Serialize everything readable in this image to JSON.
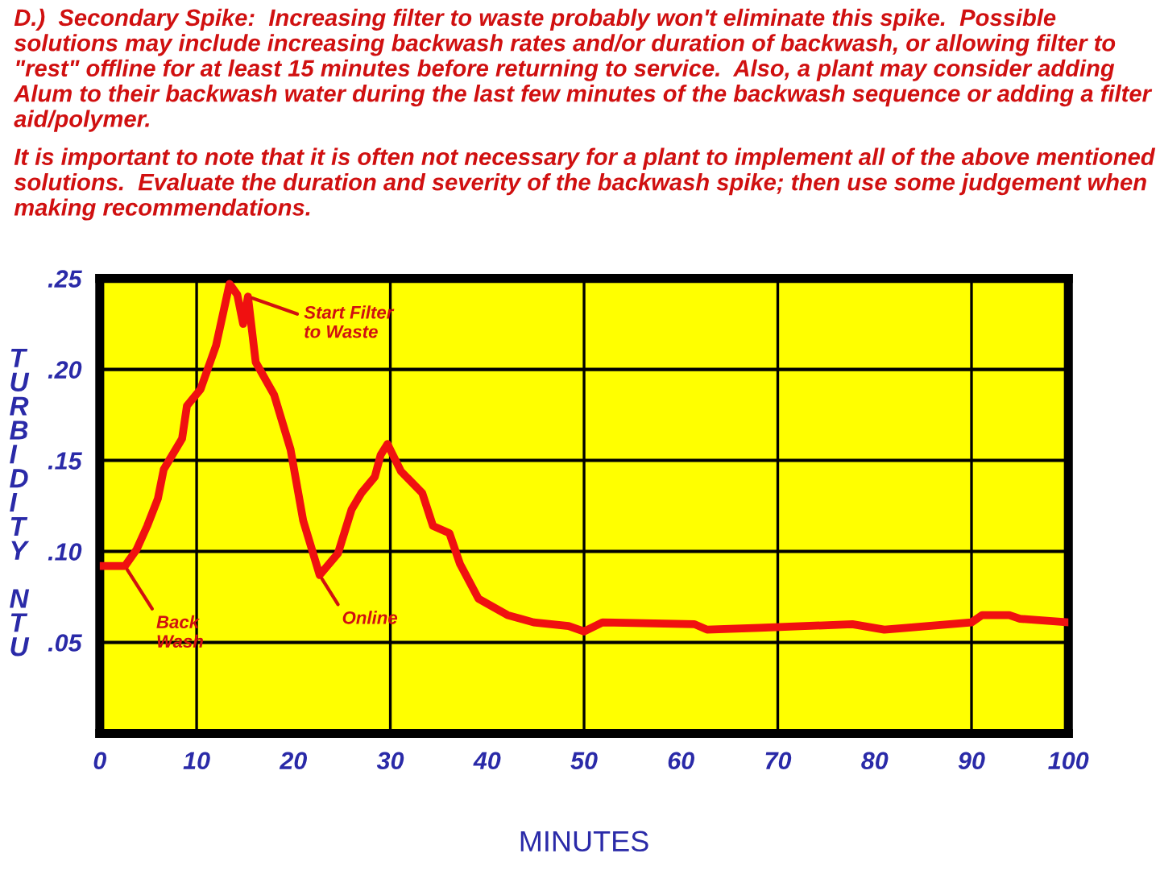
{
  "chart_data": {
    "type": "line",
    "title": "D.)  Secondary Spike:  Increasing filter to waste probably won't eliminate this spike.  Possible solutions may include increasing backwash rates and/or duration of backwash, or allowing filter to \"rest\" offline for at least 15 minutes before returning to service.  Also, a plant may consider adding Alum to their backwash water during the last few minutes of the backwash sequence or adding a filter aid/polymer.",
    "subtitle": "It is important to note that it is often not necessary for a plant to implement all of the above mentioned solutions.  Evaluate the duration and severity of the backwash spike; then use some judgement when making recommendations.",
    "xlabel": "MINUTES",
    "ylabel": "TURBIDITY NTU",
    "series": [
      {
        "color": "#f01010",
        "x": [
          0,
          2.6,
          3.8,
          4.9,
          6.0,
          6.6,
          8.5,
          9.0,
          10.4,
          12.0,
          13.4,
          14.2,
          14.8,
          15.3,
          16.1,
          18.0,
          19.7,
          21.0,
          22.7,
          24.6,
          26.0,
          27.0,
          28.4,
          29.0,
          29.7,
          31.1,
          33.3,
          34.4,
          36.1,
          37.2,
          39.1,
          42.1,
          44.8,
          48.4,
          50,
          51.9,
          61.4,
          62.7,
          68.1,
          77.7,
          81.0,
          83.3,
          90,
          91.1,
          93.9,
          95.0,
          100
        ],
        "values": [
          0.092,
          0.092,
          0.101,
          0.114,
          0.129,
          0.145,
          0.162,
          0.18,
          0.189,
          0.213,
          0.247,
          0.241,
          0.225,
          0.24,
          0.204,
          0.186,
          0.156,
          0.117,
          0.087,
          0.099,
          0.123,
          0.132,
          0.141,
          0.153,
          0.159,
          0.144,
          0.132,
          0.114,
          0.11,
          0.093,
          0.074,
          0.065,
          0.061,
          0.059,
          0.056,
          0.061,
          0.06,
          0.057,
          0.058,
          0.06,
          0.057,
          0.058,
          0.061,
          0.065,
          0.065,
          0.063,
          0.061
        ]
      }
    ],
    "xlim": [
      0,
      100
    ],
    "xticks": [
      0,
      10,
      20,
      30,
      40,
      50,
      60,
      70,
      80,
      90,
      100
    ],
    "ylim": [
      0,
      0.25
    ],
    "yticks": [
      {
        "value": 0,
        "label": null
      },
      {
        "value": 0.05,
        "label": ".05"
      },
      {
        "value": 0.1,
        "label": ".10"
      },
      {
        "value": 0.15,
        "label": ".15"
      },
      {
        "value": 0.2,
        "label": ".20"
      },
      {
        "value": 0.25,
        "label": ".25"
      }
    ],
    "grid": "y",
    "ref_lines": [
      {
        "axis": "x",
        "value": 10,
        "color": "#000000"
      },
      {
        "axis": "x",
        "value": 30,
        "color": "#000000"
      },
      {
        "axis": "x",
        "value": 50,
        "color": "#000000"
      },
      {
        "axis": "x",
        "value": 70,
        "color": "#000000"
      },
      {
        "axis": "x",
        "value": 90,
        "color": "#000000"
      }
    ],
    "annotations": [
      {
        "text": "Back\nWash",
        "x": 2.6,
        "y": 0.092
      },
      {
        "text": "Start Filter\nto Waste",
        "x": 15.3,
        "y": 0.24
      },
      {
        "text": "Online",
        "x": 22.7,
        "y": 0.087
      }
    ],
    "line_style": "solid",
    "marker": "none"
  }
}
